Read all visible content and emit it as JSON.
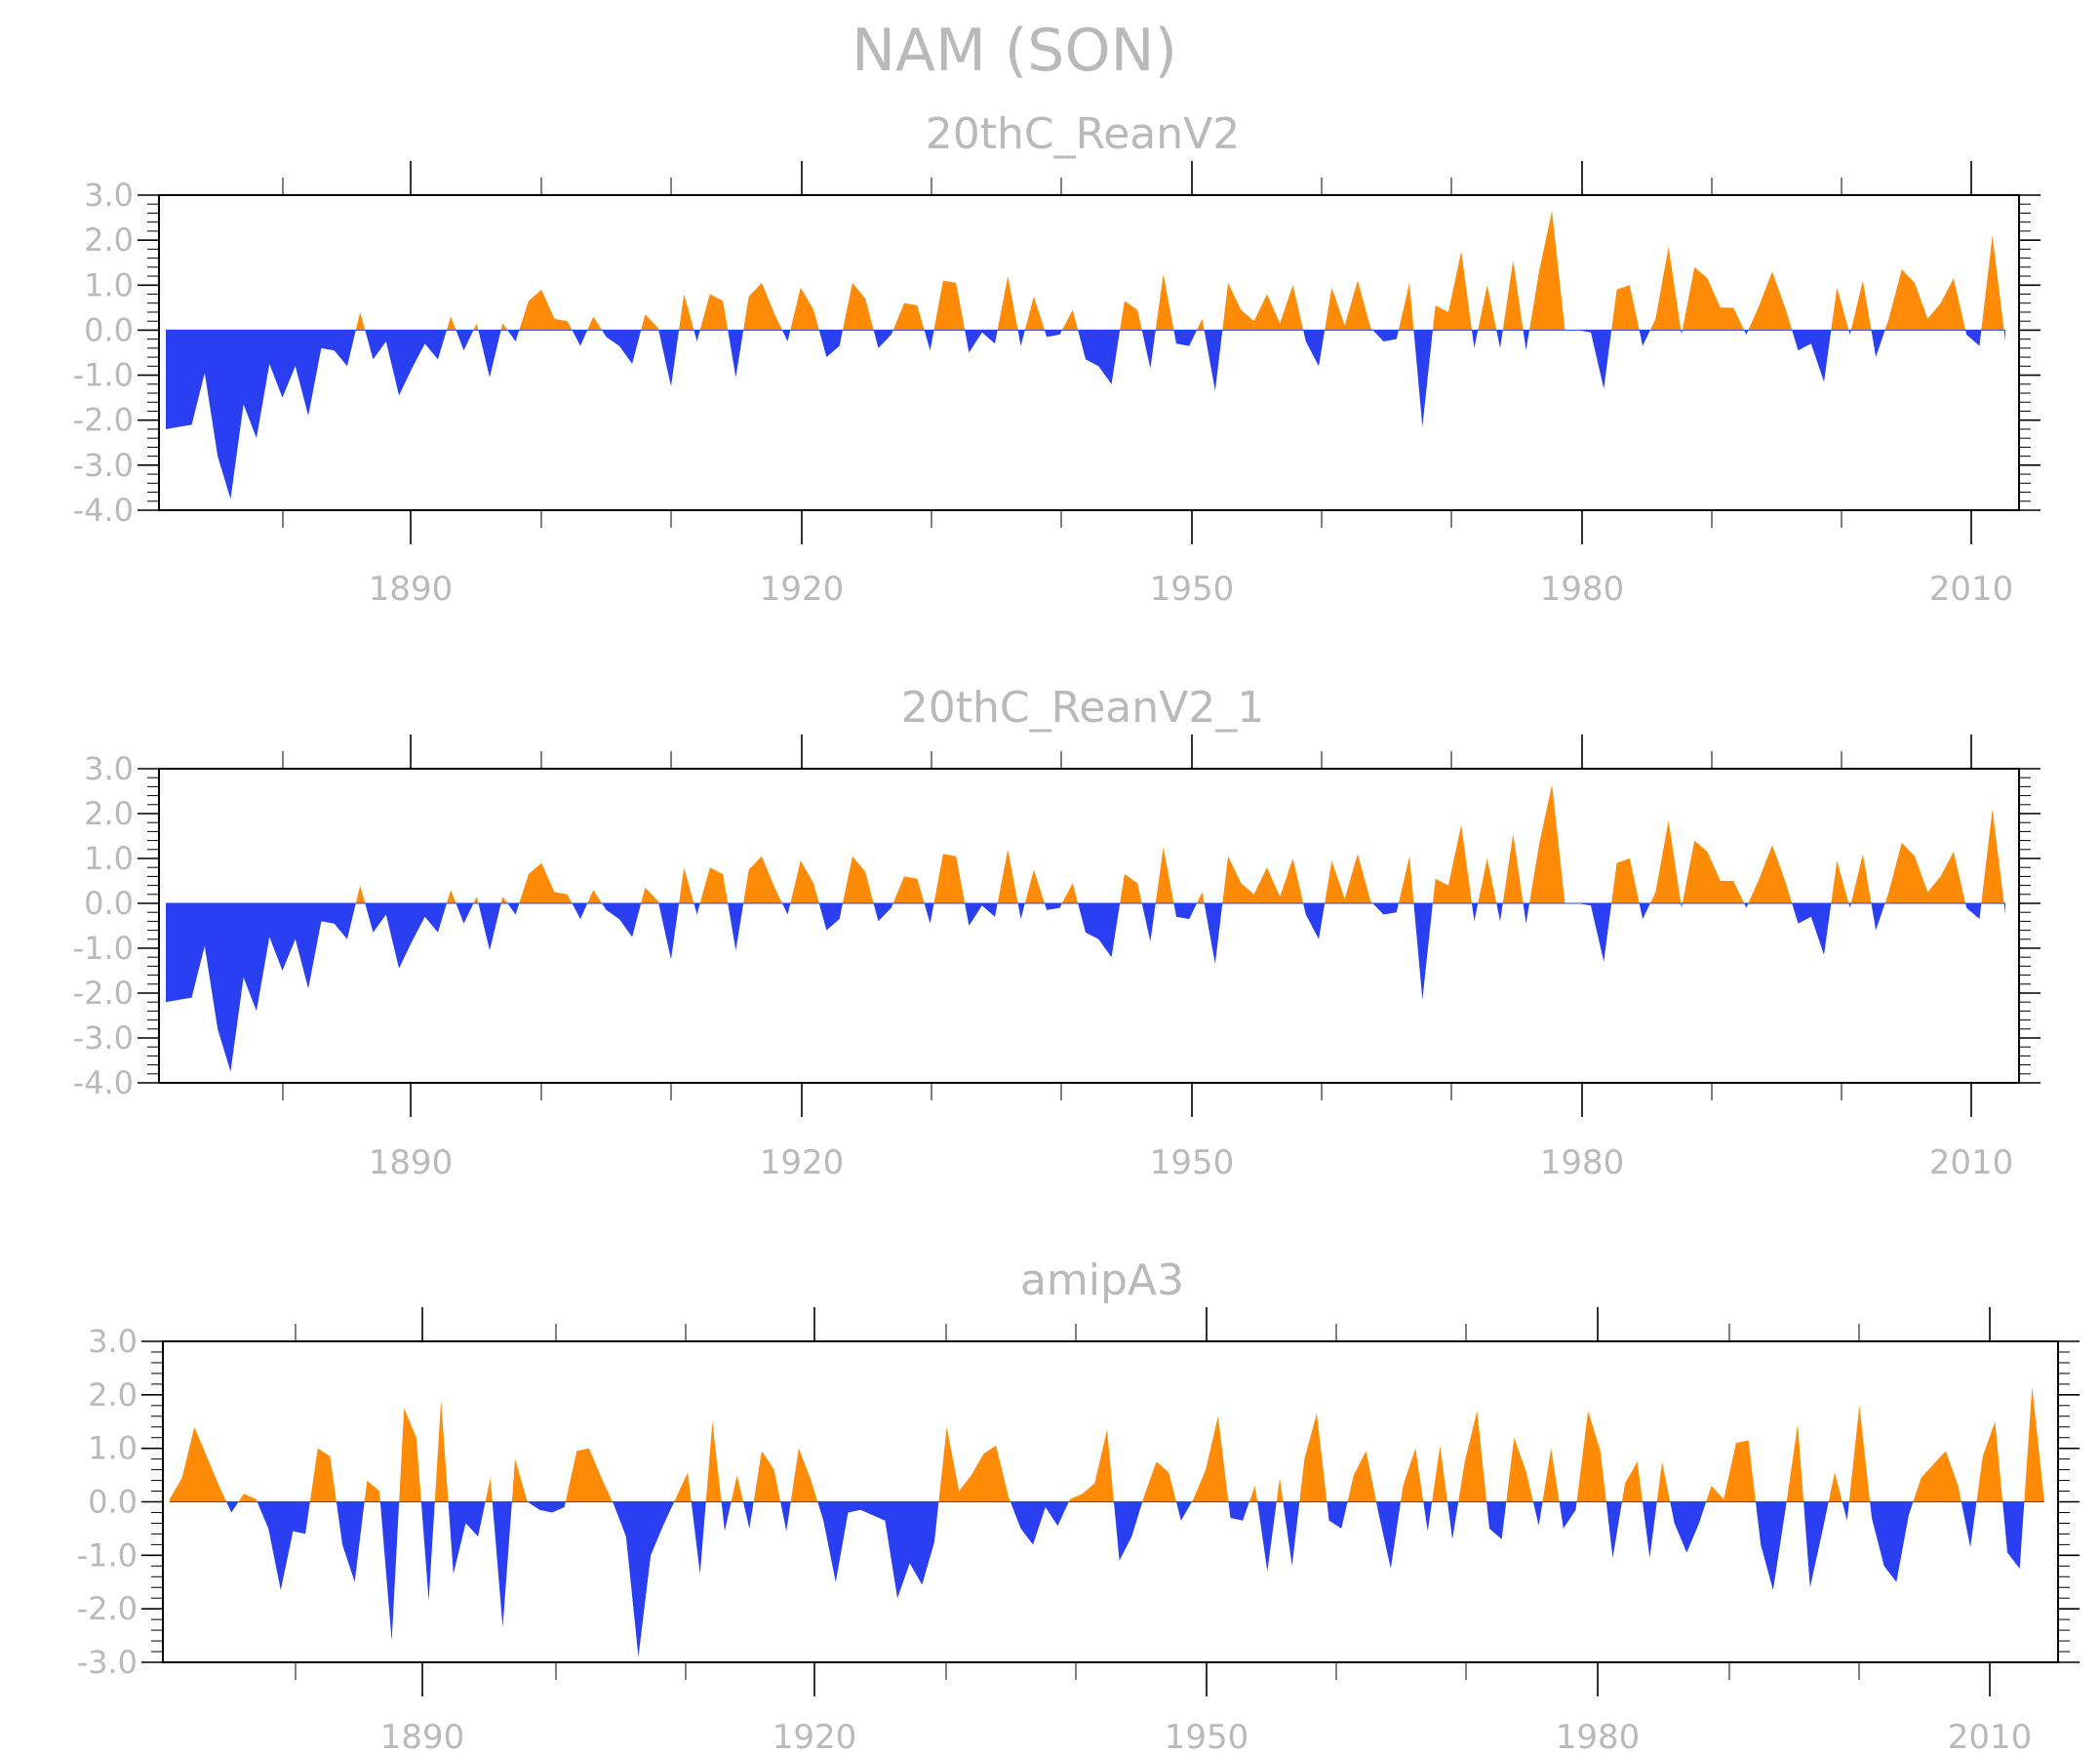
{
  "figure": {
    "title": "NAM (SON)"
  },
  "colors": {
    "positive": "#ff8a05",
    "negative": "#2a3ff2",
    "text": "#b9b9b9",
    "axis": "#000000"
  },
  "chart_data": [
    {
      "type": "area",
      "title": "20thC_ReanV2",
      "xlabel": "",
      "ylabel": "",
      "start_year": 1871,
      "xlim": [
        1871,
        2012
      ],
      "ylim": [
        -4.0,
        3.0
      ],
      "y_ticks": [
        "3.0",
        "2.0",
        "1.0",
        "0.0",
        "-1.0",
        "-2.0",
        "-3.0",
        "-4.0"
      ],
      "x_tick_labels": [
        "1890",
        "1920",
        "1950",
        "1980",
        "2010"
      ],
      "values": [
        -2.2,
        -2.15,
        -2.1,
        -0.95,
        -2.8,
        -3.75,
        -1.65,
        -2.4,
        -0.75,
        -1.5,
        -0.8,
        -1.9,
        -0.4,
        -0.45,
        -0.8,
        0.4,
        -0.65,
        -0.25,
        -1.45,
        -0.85,
        -0.3,
        -0.65,
        0.3,
        -0.45,
        0.15,
        -1.05,
        0.15,
        -0.25,
        0.65,
        0.9,
        0.25,
        0.2,
        -0.35,
        0.3,
        -0.15,
        -0.35,
        -0.75,
        0.35,
        0.05,
        -1.25,
        0.8,
        -0.25,
        0.8,
        0.65,
        -1.05,
        0.75,
        1.05,
        0.35,
        -0.25,
        0.95,
        0.45,
        -0.6,
        -0.35,
        1.05,
        0.7,
        -0.4,
        -0.1,
        0.6,
        0.55,
        -0.45,
        1.1,
        1.05,
        -0.5,
        -0.05,
        -0.3,
        1.2,
        -0.35,
        0.75,
        -0.15,
        -0.1,
        0.45,
        -0.65,
        -0.8,
        -1.2,
        0.65,
        0.45,
        -0.85,
        1.25,
        -0.3,
        -0.35,
        0.25,
        -1.35,
        1.05,
        0.45,
        0.2,
        0.8,
        0.15,
        1.0,
        -0.25,
        -0.8,
        0.95,
        0.1,
        1.1,
        0.05,
        -0.25,
        -0.2,
        1.05,
        -2.15,
        0.55,
        0.4,
        1.75,
        -0.4,
        1.0,
        -0.4,
        1.55,
        -0.45,
        1.3,
        2.65,
        0.0,
        0.0,
        -0.05,
        -1.3,
        0.9,
        1.0,
        -0.35,
        0.25,
        1.85,
        -0.1,
        1.4,
        1.15,
        0.5,
        0.5,
        -0.1,
        0.55,
        1.3,
        0.5,
        -0.45,
        -0.3,
        -1.15,
        0.95,
        -0.1,
        1.1,
        -0.6,
        0.25,
        1.35,
        1.05,
        0.25,
        0.6,
        1.15,
        -0.1,
        -0.35,
        2.1,
        -0.25
      ]
    },
    {
      "type": "area",
      "title": "20thC_ReanV2_1",
      "xlabel": "",
      "ylabel": "",
      "start_year": 1871,
      "xlim": [
        1871,
        2012
      ],
      "ylim": [
        -4.0,
        3.0
      ],
      "y_ticks": [
        "3.0",
        "2.0",
        "1.0",
        "0.0",
        "-1.0",
        "-2.0",
        "-3.0",
        "-4.0"
      ],
      "x_tick_labels": [
        "1890",
        "1920",
        "1950",
        "1980",
        "2010"
      ],
      "values": [
        -2.2,
        -2.15,
        -2.1,
        -0.95,
        -2.8,
        -3.75,
        -1.65,
        -2.4,
        -0.75,
        -1.5,
        -0.8,
        -1.9,
        -0.4,
        -0.45,
        -0.8,
        0.4,
        -0.65,
        -0.25,
        -1.45,
        -0.85,
        -0.3,
        -0.65,
        0.3,
        -0.45,
        0.15,
        -1.05,
        0.15,
        -0.25,
        0.65,
        0.9,
        0.25,
        0.2,
        -0.35,
        0.3,
        -0.15,
        -0.35,
        -0.75,
        0.35,
        0.05,
        -1.25,
        0.8,
        -0.25,
        0.8,
        0.65,
        -1.05,
        0.75,
        1.05,
        0.35,
        -0.25,
        0.95,
        0.45,
        -0.6,
        -0.35,
        1.05,
        0.7,
        -0.4,
        -0.1,
        0.6,
        0.55,
        -0.45,
        1.1,
        1.05,
        -0.5,
        -0.05,
        -0.3,
        1.2,
        -0.35,
        0.75,
        -0.15,
        -0.1,
        0.45,
        -0.65,
        -0.8,
        -1.2,
        0.65,
        0.45,
        -0.85,
        1.25,
        -0.3,
        -0.35,
        0.25,
        -1.35,
        1.05,
        0.45,
        0.2,
        0.8,
        0.15,
        1.0,
        -0.25,
        -0.8,
        0.95,
        0.1,
        1.1,
        0.05,
        -0.25,
        -0.2,
        1.05,
        -2.15,
        0.55,
        0.4,
        1.75,
        -0.4,
        1.0,
        -0.4,
        1.55,
        -0.45,
        1.3,
        2.65,
        0.0,
        0.0,
        -0.05,
        -1.3,
        0.9,
        1.0,
        -0.35,
        0.25,
        1.85,
        -0.1,
        1.4,
        1.15,
        0.5,
        0.5,
        -0.1,
        0.55,
        1.3,
        0.5,
        -0.45,
        -0.3,
        -1.15,
        0.95,
        -0.1,
        1.1,
        -0.6,
        0.25,
        1.35,
        1.05,
        0.25,
        0.6,
        1.15,
        -0.1,
        -0.35,
        2.1,
        -0.25
      ]
    },
    {
      "type": "area",
      "title": "amipA3",
      "xlabel": "",
      "ylabel": "",
      "start_year": 1871,
      "xlim": [
        1871,
        2012
      ],
      "ylim": [
        -3.0,
        3.0
      ],
      "y_ticks": [
        "3.0",
        "2.0",
        "1.0",
        "0.0",
        "-1.0",
        "-2.0",
        "-3.0"
      ],
      "x_tick_labels": [
        "1890",
        "1920",
        "1950",
        "1980",
        "2010"
      ],
      "values": [
        0.05,
        0.45,
        1.4,
        0.85,
        0.3,
        -0.2,
        0.15,
        0.05,
        -0.5,
        -1.65,
        -0.55,
        -0.6,
        1.0,
        0.85,
        -0.8,
        -1.5,
        0.4,
        0.2,
        -2.6,
        1.75,
        1.2,
        -1.85,
        1.9,
        -1.35,
        -0.4,
        -0.65,
        0.45,
        -2.35,
        0.8,
        0.0,
        -0.15,
        -0.2,
        -0.1,
        0.95,
        1.0,
        0.45,
        -0.05,
        -0.65,
        -2.9,
        -1.0,
        -0.45,
        0.05,
        0.55,
        -1.35,
        1.5,
        -0.55,
        0.5,
        -0.5,
        0.95,
        0.6,
        -0.55,
        1.0,
        0.4,
        -0.35,
        -1.5,
        -0.2,
        -0.15,
        -0.25,
        -0.35,
        -1.8,
        -1.15,
        -1.55,
        -0.75,
        1.4,
        0.2,
        0.5,
        0.9,
        1.05,
        0.1,
        -0.5,
        -0.8,
        -0.1,
        -0.45,
        0.05,
        0.15,
        0.35,
        1.35,
        -1.1,
        -0.65,
        0.1,
        0.75,
        0.55,
        -0.35,
        0.05,
        0.6,
        1.6,
        -0.3,
        -0.35,
        0.3,
        -1.3,
        0.45,
        -1.2,
        0.8,
        1.65,
        -0.35,
        -0.5,
        0.5,
        0.95,
        -0.2,
        -1.25,
        0.3,
        1.0,
        -0.55,
        1.05,
        -0.7,
        0.75,
        1.7,
        -0.5,
        -0.7,
        1.2,
        0.55,
        -0.45,
        1.0,
        -0.5,
        -0.15,
        1.7,
        0.95,
        -1.05,
        0.35,
        0.75,
        -1.05,
        0.75,
        -0.4,
        -0.95,
        -0.4,
        0.3,
        0.05,
        1.1,
        1.15,
        -0.8,
        -1.65,
        -0.15,
        1.45,
        -1.6,
        -0.55,
        0.55,
        -0.35,
        1.8,
        -0.3,
        -1.2,
        -1.5,
        -0.25,
        0.45,
        0.7,
        0.95,
        0.3,
        -0.85,
        0.85,
        1.5,
        -0.95,
        -1.25,
        2.15,
        0.0
      ]
    }
  ]
}
